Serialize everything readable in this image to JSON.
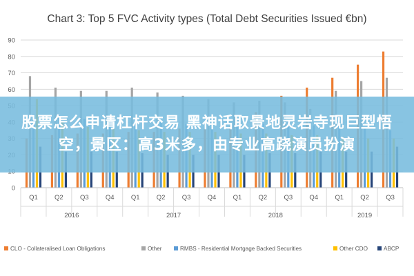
{
  "chart_data": {
    "type": "bar",
    "title": "Chart 3: Top 5 FVC Activity types (Total Debt Securities Issued €bn)",
    "xlabel": "",
    "ylabel": "",
    "ylim": [
      0,
      90
    ],
    "yticks": [
      "0",
      "10",
      "20",
      "30",
      "40",
      "50",
      "60",
      "70",
      "80",
      "90"
    ],
    "grid": true,
    "legend_position": "bottom",
    "categories": [
      "Q1",
      "Q2",
      "Q3",
      "Q4",
      "Q1",
      "Q2",
      "Q3",
      "Q4",
      "Q1",
      "Q2",
      "Q3",
      "Q4",
      "Q1",
      "Q2",
      "Q3"
    ],
    "groups": [
      {
        "label": "2016",
        "count": 4
      },
      {
        "label": "2017",
        "count": 4
      },
      {
        "label": "2018",
        "count": 4
      },
      {
        "label": "2019",
        "count": 3
      }
    ],
    "series": [
      {
        "name": "CLO - Collateralised Loan Obligations",
        "color": "#ED7D31",
        "values": [
          30,
          32,
          33,
          33,
          34,
          34,
          36,
          36,
          38,
          46,
          56,
          61,
          67,
          75,
          83
        ]
      },
      {
        "name": "Other",
        "color": "#A5A5A5",
        "values": [
          68,
          61,
          59,
          59,
          61,
          58,
          56,
          54,
          52,
          53,
          52,
          48,
          59,
          65,
          67
        ]
      },
      {
        "name": "RMBS - Residential Mortgage Backed Securities",
        "color": "#5B9BD5",
        "values": [
          45,
          44,
          42,
          41,
          41,
          40,
          39,
          40,
          38,
          39,
          40,
          38,
          38,
          36,
          35
        ]
      },
      {
        "name": "Other CDO",
        "color": "#FFC000",
        "values": [
          54,
          40,
          37,
          36,
          35,
          34,
          34,
          34,
          33,
          33,
          32,
          32,
          31,
          30,
          30
        ]
      },
      {
        "name": "ABCP",
        "color": "#264478",
        "values": [
          25,
          22,
          22,
          22,
          21,
          20,
          20,
          20,
          20,
          21,
          21,
          22,
          22,
          22,
          25
        ]
      }
    ]
  },
  "overlay": {
    "text": "股票怎么申请杠杆交易 黑神话取景地灵岩寺现巨型悟空，景区：高3米多，由专业高跷演员扮演"
  }
}
